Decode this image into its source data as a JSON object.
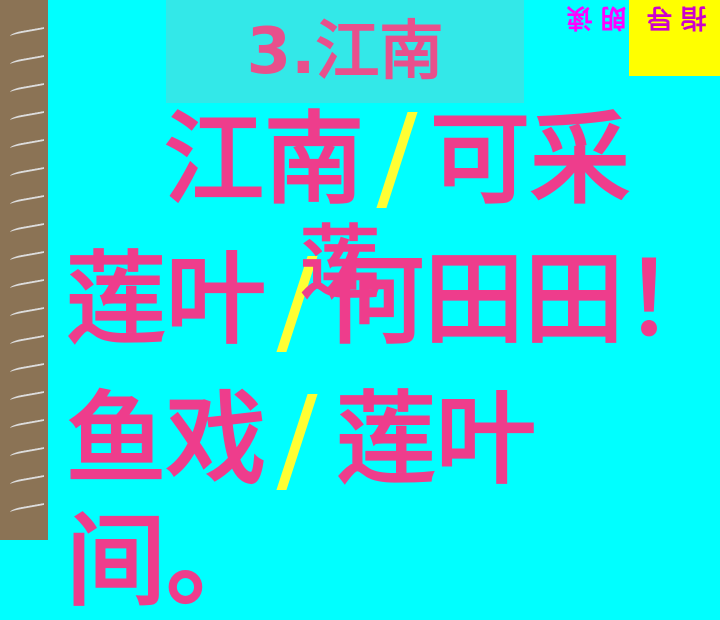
{
  "title": "3.江南",
  "corner_label": {
    "col1": "指",
    "col2": "导",
    "col3": "朗",
    "col4": "读",
    "color_col1": "#cc00cc",
    "color_col2": "#cc00cc",
    "color_col3": "#ff00ff",
    "color_col4": "#ff00ff"
  },
  "poem": {
    "line1_a": "江南",
    "line1_b": "可采",
    "line2_a": "莲叶",
    "line2_overlap": "莲",
    "line2_b": "何田田！",
    "line3_a": "鱼戏",
    "line3_b": "莲叶",
    "line4_a": "间。"
  },
  "colors": {
    "background": "#00ffff",
    "text": "#ee3d8c",
    "slash": "#ffff33",
    "corner": "#ffff00"
  }
}
